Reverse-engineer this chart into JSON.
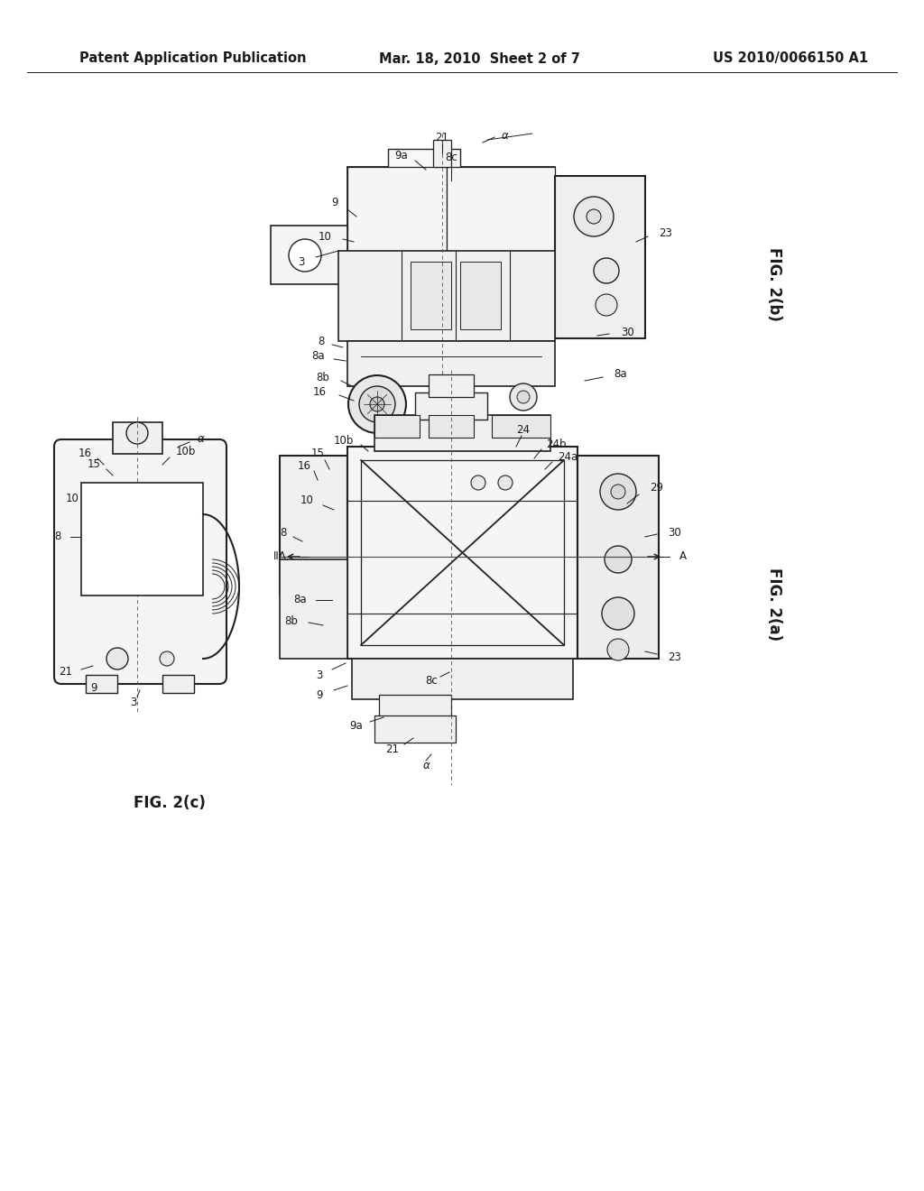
{
  "bg_color": "#ffffff",
  "header_left": "Patent Application Publication",
  "header_center": "Mar. 18, 2010  Sheet 2 of 7",
  "header_right": "US 2010/0066150 A1",
  "header_fontsize": 10.5,
  "fig2b_label": "FIG. 2(b)",
  "fig2a_label": "FIG. 2(a)",
  "fig2c_label": "FIG. 2(c)",
  "text_color": "#1a1a1a",
  "drawing_color": "#222222",
  "line_color": "#333333"
}
